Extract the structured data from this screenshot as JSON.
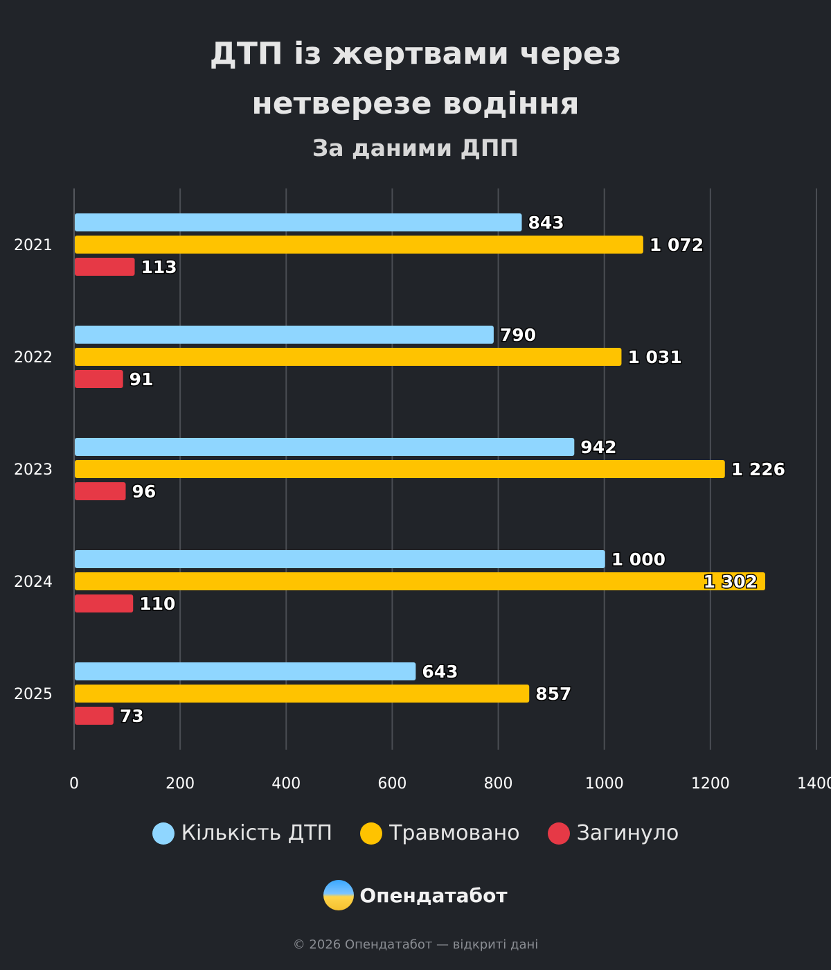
{
  "chart_data": {
    "type": "bar",
    "orientation": "horizontal",
    "title": "ДТП із жертвами через нетверезе водіння",
    "subtitle": "За даними ДПП",
    "categories": [
      "2021",
      "2022",
      "2023",
      "2024",
      "2025"
    ],
    "series": [
      {
        "name": "Кількість ДТП",
        "color": "#8fd6ff",
        "values": [
          843,
          790,
          942,
          1000,
          643
        ],
        "labels": [
          "843",
          "790",
          "942",
          "1 000",
          "643"
        ]
      },
      {
        "name": "Травмовано",
        "color": "#ffc300",
        "values": [
          1072,
          1031,
          1226,
          1302,
          857
        ],
        "labels": [
          "1 072",
          "1 031",
          "1 226",
          "1 302",
          "857"
        ]
      },
      {
        "name": "Загинуло",
        "color": "#e63946",
        "values": [
          113,
          91,
          96,
          110,
          73
        ],
        "labels": [
          "113",
          "91",
          "96",
          "110",
          "73"
        ]
      }
    ],
    "xlim": [
      0,
      1400
    ],
    "xticks": [
      "0",
      "200",
      "400",
      "600",
      "800",
      "1000",
      "1200",
      "1400"
    ],
    "grid": true,
    "legend": "bottom"
  },
  "brand": {
    "name": "Опендатабот"
  },
  "footer": "© 2026 Опендатабот — відкриті дані"
}
